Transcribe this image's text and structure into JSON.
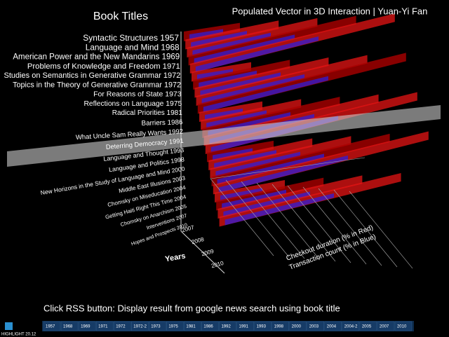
{
  "header": {
    "title": "Populated Vector in 3D Interaction | Yuan-Yi Fan"
  },
  "panel": {
    "title": "Book Titles",
    "books": [
      "Syntactic Structures 1957",
      "Language and Mind 1968",
      "American Power and the New Mandarins 1969",
      "Problems of Knowledge and Freedom 1971",
      "Studies on Semantics in Generative Grammar 1972",
      "Topics in the Theory of Generative Grammar 1972",
      "For Reasons of State 1973",
      "Reflections on Language 1975",
      "Radical Priorities 1981",
      "Barriers 1986",
      "What Uncle Sam Really Wants 1992",
      "Deterring Democracy 1991",
      "Language and Thought 1993",
      "Language and Politics 1998",
      "New Horizons in the Study of Language and Mind 2000",
      "Middle East Illusions 2003",
      "Chomsky on Miseducation 2004",
      "Getting Haiti Right This Time 2004",
      "Chomsky on Anarchism 2005",
      "Interventions 2007",
      "Hopes and Prospects 2010"
    ]
  },
  "axes": {
    "years_label": "Years",
    "years": [
      "2007",
      "2008",
      "2009",
      "2010"
    ],
    "red_label": "Checkout duration (% in Red)",
    "blue_label": "Transaction count (% in Blue)"
  },
  "instruction": "Click RSS button: Display result from google news search using book title",
  "toolbar": {
    "status": "HIGHLIGHT 20.12",
    "buttons": [
      "1957",
      "1968",
      "1969",
      "1971",
      "1972",
      "1972-2",
      "1973",
      "1975",
      "1981",
      "1986",
      "1992",
      "1991",
      "1993",
      "1998",
      "2000",
      "2003",
      "2004",
      "2004-2",
      "2005",
      "2007",
      "2010"
    ]
  }
}
